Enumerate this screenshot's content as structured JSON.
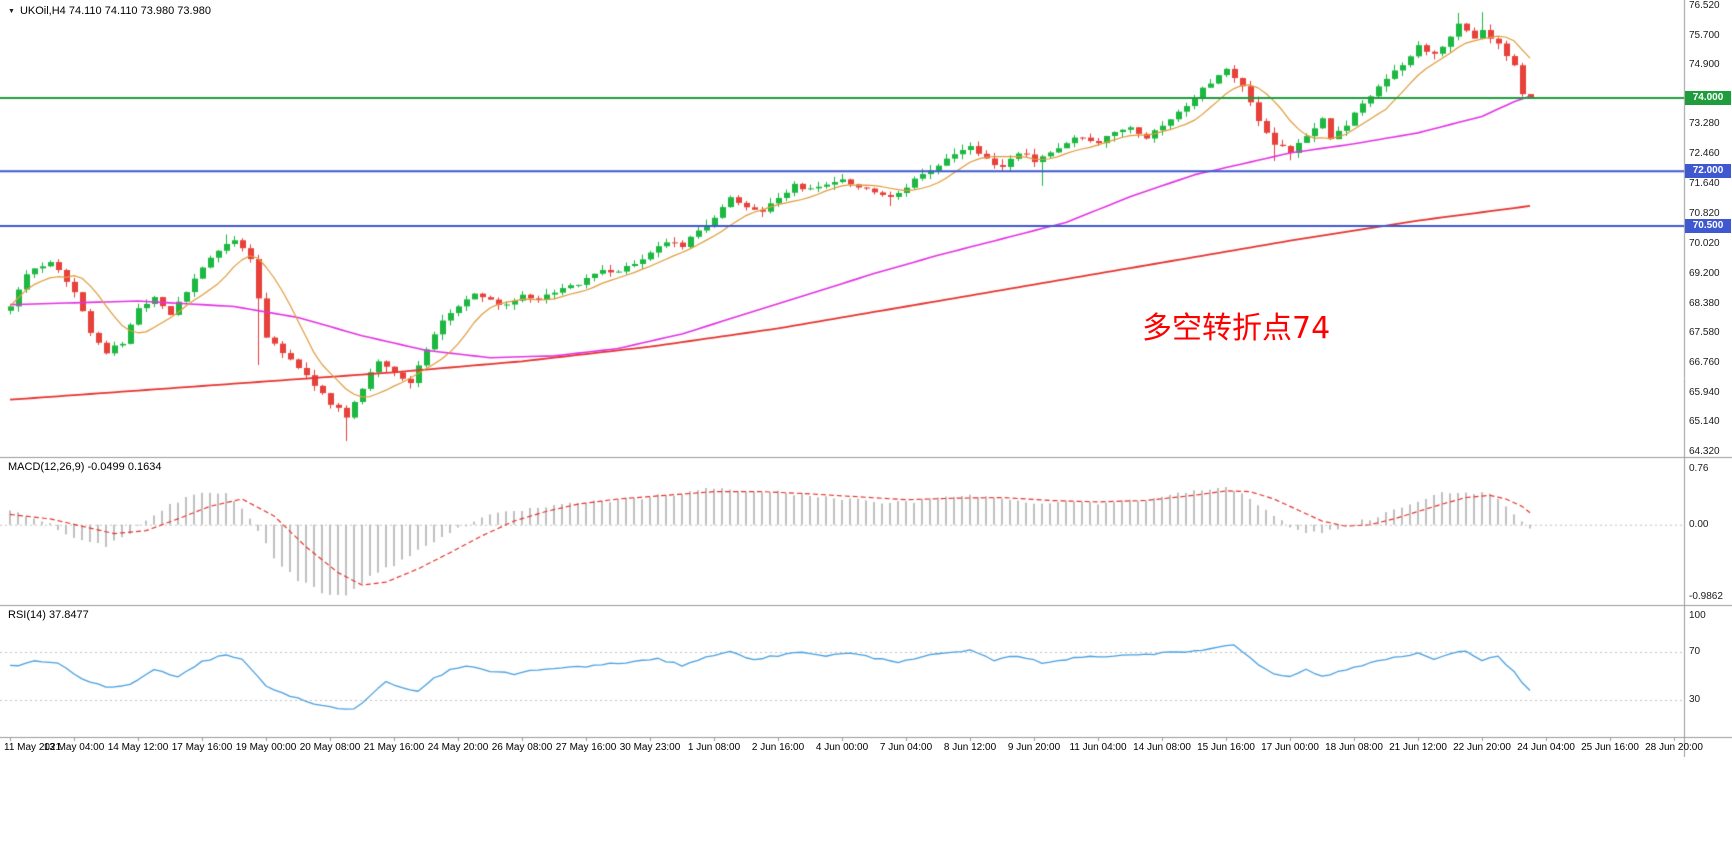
{
  "window": {
    "symbol_marker": "▼",
    "title": "UKOil,H4 74.110 74.110 73.980 73.980"
  },
  "colors": {
    "background": "#ffffff",
    "up_candle": "#1cb841",
    "down_candle": "#e8403a",
    "ma_fast": "#e09c3c",
    "ma_mid": "#e234e2",
    "ma_slow": "#e53531",
    "hline_green": "#1f9c3c",
    "hline_blue": "#3f58cf",
    "macd_hist": "#c0c0c0",
    "macd_signal": "#e53531",
    "rsi_line": "#4aa0e0",
    "axis_text": "#1a1a1a",
    "separator": "#9a9a9a",
    "annotation": "#ff0000"
  },
  "main_chart": {
    "y_ticks": [
      {
        "value": 76.52,
        "label": "76.520"
      },
      {
        "value": 75.7,
        "label": "75.700"
      },
      {
        "value": 74.9,
        "label": "74.900"
      },
      {
        "value": 73.28,
        "label": "73.280"
      },
      {
        "value": 72.46,
        "label": "72.460"
      },
      {
        "value": 71.64,
        "label": "71.640"
      },
      {
        "value": 70.82,
        "label": "70.820"
      },
      {
        "value": 70.02,
        "label": "70.020"
      },
      {
        "value": 69.2,
        "label": "69.200"
      },
      {
        "value": 68.38,
        "label": "68.380"
      },
      {
        "value": 67.58,
        "label": "67.580"
      },
      {
        "value": 66.76,
        "label": "66.760"
      },
      {
        "value": 65.94,
        "label": "65.940"
      },
      {
        "value": 65.14,
        "label": "65.140"
      },
      {
        "value": 64.32,
        "label": "64.320"
      }
    ],
    "hlines": [
      {
        "value": 74.0,
        "label": "74.000",
        "color": "#1f9c3c"
      },
      {
        "value": 72.0,
        "label": "72.000",
        "color": "#3f58cf"
      },
      {
        "value": 70.5,
        "label": "70.500",
        "color": "#3f58cf"
      }
    ],
    "annotation": {
      "text": "多空转折点74"
    }
  },
  "macd_panel": {
    "label": "MACD(12,26,9) -0.0499 0.1634",
    "y_ticks": [
      {
        "value": 0.76,
        "label": "0.76"
      },
      {
        "value": 0,
        "label": "0.00"
      },
      {
        "value": -0.9862,
        "label": "-0.9862"
      }
    ]
  },
  "rsi_panel": {
    "label": "RSI(14) 37.8477",
    "y_ticks": [
      {
        "value": 100,
        "label": "100"
      },
      {
        "value": 70,
        "label": "70"
      },
      {
        "value": 30,
        "label": "30"
      }
    ],
    "levels": [
      70,
      30
    ]
  },
  "x_axis": {
    "labels": [
      "11 May 2021",
      "13 May 04:00",
      "14 May 12:00",
      "17 May 16:00",
      "19 May 00:00",
      "20 May 08:00",
      "21 May 16:00",
      "24 May 20:00",
      "26 May 08:00",
      "27 May 16:00",
      "30 May 23:00",
      "1 Jun 08:00",
      "2 Jun 16:00",
      "4 Jun 00:00",
      "7 Jun 04:00",
      "8 Jun 12:00",
      "9 Jun 20:00",
      "11 Jun 04:00",
      "14 Jun 08:00",
      "15 Jun 16:00",
      "17 Jun 00:00",
      "18 Jun 08:00",
      "21 Jun 12:00",
      "22 Jun 20:00",
      "24 Jun 04:00",
      "25 Jun 16:00",
      "28 Jun 20:00"
    ]
  },
  "chart_data": {
    "type": "candlestick",
    "symbol": "UKOil",
    "timeframe": "H4",
    "current_bar": {
      "open": 74.11,
      "high": 74.11,
      "low": 73.98,
      "close": 73.98
    },
    "price_range": [
      64.32,
      76.52
    ],
    "bars": 191,
    "close_anchors": [
      [
        0,
        68.35
      ],
      [
        2,
        69.15
      ],
      [
        5,
        69.55
      ],
      [
        8,
        68.7
      ],
      [
        10,
        67.6
      ],
      [
        12,
        67.05
      ],
      [
        14,
        67.3
      ],
      [
        16,
        68.25
      ],
      [
        18,
        68.6
      ],
      [
        20,
        68.05
      ],
      [
        22,
        68.75
      ],
      [
        24,
        69.35
      ],
      [
        26,
        69.85
      ],
      [
        28,
        70.1
      ],
      [
        30,
        69.6
      ],
      [
        32,
        67.5
      ],
      [
        34,
        67.05
      ],
      [
        36,
        66.65
      ],
      [
        38,
        66.15
      ],
      [
        40,
        65.65
      ],
      [
        42,
        65.3
      ],
      [
        44,
        66.05
      ],
      [
        46,
        66.85
      ],
      [
        48,
        66.5
      ],
      [
        50,
        66.25
      ],
      [
        52,
        67.15
      ],
      [
        54,
        67.95
      ],
      [
        56,
        68.35
      ],
      [
        58,
        68.65
      ],
      [
        60,
        68.45
      ],
      [
        62,
        68.3
      ],
      [
        64,
        68.6
      ],
      [
        66,
        68.5
      ],
      [
        68,
        68.7
      ],
      [
        70,
        68.85
      ],
      [
        72,
        69.05
      ],
      [
        74,
        69.3
      ],
      [
        76,
        69.2
      ],
      [
        78,
        69.5
      ],
      [
        80,
        69.75
      ],
      [
        82,
        70.1
      ],
      [
        84,
        69.9
      ],
      [
        86,
        70.4
      ],
      [
        88,
        70.75
      ],
      [
        90,
        71.25
      ],
      [
        92,
        71.0
      ],
      [
        94,
        70.85
      ],
      [
        96,
        71.3
      ],
      [
        98,
        71.6
      ],
      [
        100,
        71.5
      ],
      [
        102,
        71.65
      ],
      [
        104,
        71.8
      ],
      [
        106,
        71.55
      ],
      [
        108,
        71.4
      ],
      [
        110,
        71.3
      ],
      [
        112,
        71.6
      ],
      [
        114,
        71.9
      ],
      [
        116,
        72.2
      ],
      [
        118,
        72.5
      ],
      [
        120,
        72.65
      ],
      [
        122,
        72.35
      ],
      [
        124,
        72.1
      ],
      [
        126,
        72.5
      ],
      [
        128,
        72.3
      ],
      [
        130,
        72.55
      ],
      [
        132,
        72.8
      ],
      [
        134,
        72.95
      ],
      [
        136,
        72.8
      ],
      [
        138,
        73.1
      ],
      [
        140,
        73.2
      ],
      [
        142,
        72.95
      ],
      [
        144,
        73.3
      ],
      [
        146,
        73.6
      ],
      [
        148,
        74.0
      ],
      [
        150,
        74.45
      ],
      [
        152,
        74.75
      ],
      [
        154,
        74.3
      ],
      [
        156,
        73.4
      ],
      [
        158,
        72.75
      ],
      [
        160,
        72.55
      ],
      [
        162,
        73.0
      ],
      [
        164,
        73.4
      ],
      [
        165,
        72.9
      ],
      [
        167,
        73.3
      ],
      [
        169,
        73.8
      ],
      [
        171,
        74.3
      ],
      [
        173,
        74.7
      ],
      [
        175,
        75.1
      ],
      [
        176,
        75.4
      ],
      [
        178,
        75.2
      ],
      [
        180,
        75.7
      ],
      [
        181,
        76.05
      ],
      [
        183,
        75.6
      ],
      [
        184,
        75.9
      ],
      [
        186,
        75.45
      ],
      [
        187,
        75.15
      ],
      [
        188,
        74.9
      ],
      [
        189,
        74.11
      ],
      [
        190,
        73.98
      ]
    ],
    "wick_overrides": [
      {
        "i": 27,
        "high": 70.27
      },
      {
        "i": 31,
        "low": 66.7
      },
      {
        "i": 42,
        "low": 64.62
      },
      {
        "i": 110,
        "low": 71.05
      },
      {
        "i": 129,
        "low": 71.6
      },
      {
        "i": 158,
        "low": 72.28
      },
      {
        "i": 160,
        "low": 72.3
      },
      {
        "i": 181,
        "high": 76.33
      },
      {
        "i": 184,
        "high": 76.35
      }
    ],
    "ma_mid_anchors": [
      [
        0,
        68.35
      ],
      [
        16,
        68.45
      ],
      [
        28,
        68.3
      ],
      [
        36,
        68.0
      ],
      [
        44,
        67.5
      ],
      [
        52,
        67.1
      ],
      [
        60,
        66.9
      ],
      [
        68,
        66.95
      ],
      [
        76,
        67.15
      ],
      [
        84,
        67.55
      ],
      [
        92,
        68.1
      ],
      [
        100,
        68.65
      ],
      [
        108,
        69.2
      ],
      [
        116,
        69.7
      ],
      [
        124,
        70.15
      ],
      [
        132,
        70.6
      ],
      [
        140,
        71.3
      ],
      [
        148,
        71.9
      ],
      [
        152,
        72.1
      ],
      [
        160,
        72.5
      ],
      [
        168,
        72.75
      ],
      [
        176,
        73.05
      ],
      [
        184,
        73.5
      ],
      [
        188,
        73.9
      ],
      [
        190,
        74.05
      ]
    ],
    "ma_slow_anchors": [
      [
        0,
        65.75
      ],
      [
        16,
        66.0
      ],
      [
        32,
        66.25
      ],
      [
        48,
        66.5
      ],
      [
        64,
        66.8
      ],
      [
        80,
        67.2
      ],
      [
        96,
        67.7
      ],
      [
        112,
        68.3
      ],
      [
        128,
        68.9
      ],
      [
        144,
        69.5
      ],
      [
        160,
        70.1
      ],
      [
        176,
        70.65
      ],
      [
        190,
        71.05
      ]
    ],
    "macd": {
      "params": "12,26,9",
      "last_macd": -0.0499,
      "last_signal": 0.1634,
      "range": [
        -0.9862,
        0.76
      ],
      "hist_anchors": [
        [
          0,
          0.18
        ],
        [
          3,
          0.1
        ],
        [
          6,
          -0.05
        ],
        [
          9,
          -0.22
        ],
        [
          12,
          -0.28
        ],
        [
          15,
          -0.1
        ],
        [
          18,
          0.15
        ],
        [
          21,
          0.32
        ],
        [
          24,
          0.45
        ],
        [
          27,
          0.42
        ],
        [
          30,
          0.1
        ],
        [
          33,
          -0.45
        ],
        [
          36,
          -0.75
        ],
        [
          39,
          -0.92
        ],
        [
          42,
          -0.95
        ],
        [
          45,
          -0.7
        ],
        [
          48,
          -0.55
        ],
        [
          51,
          -0.35
        ],
        [
          54,
          -0.15
        ],
        [
          57,
          0.0
        ],
        [
          60,
          0.12
        ],
        [
          64,
          0.2
        ],
        [
          68,
          0.25
        ],
        [
          72,
          0.3
        ],
        [
          76,
          0.33
        ],
        [
          80,
          0.38
        ],
        [
          84,
          0.42
        ],
        [
          88,
          0.5
        ],
        [
          92,
          0.46
        ],
        [
          96,
          0.44
        ],
        [
          100,
          0.4
        ],
        [
          104,
          0.36
        ],
        [
          108,
          0.3
        ],
        [
          112,
          0.3
        ],
        [
          116,
          0.36
        ],
        [
          120,
          0.42
        ],
        [
          124,
          0.34
        ],
        [
          128,
          0.3
        ],
        [
          132,
          0.32
        ],
        [
          136,
          0.3
        ],
        [
          140,
          0.32
        ],
        [
          144,
          0.38
        ],
        [
          148,
          0.48
        ],
        [
          152,
          0.52
        ],
        [
          155,
          0.35
        ],
        [
          158,
          0.1
        ],
        [
          161,
          -0.08
        ],
        [
          164,
          -0.12
        ],
        [
          167,
          0.0
        ],
        [
          170,
          0.08
        ],
        [
          173,
          0.2
        ],
        [
          176,
          0.32
        ],
        [
          179,
          0.42
        ],
        [
          182,
          0.46
        ],
        [
          185,
          0.4
        ],
        [
          187,
          0.25
        ],
        [
          188,
          0.15
        ],
        [
          189,
          0.05
        ],
        [
          190,
          -0.0499
        ]
      ],
      "signal_anchors": [
        [
          0,
          0.14
        ],
        [
          5,
          0.08
        ],
        [
          9,
          -0.02
        ],
        [
          13,
          -0.12
        ],
        [
          17,
          -0.08
        ],
        [
          21,
          0.08
        ],
        [
          25,
          0.25
        ],
        [
          29,
          0.35
        ],
        [
          33,
          0.12
        ],
        [
          37,
          -0.3
        ],
        [
          41,
          -0.65
        ],
        [
          44,
          -0.82
        ],
        [
          47,
          -0.78
        ],
        [
          51,
          -0.6
        ],
        [
          55,
          -0.38
        ],
        [
          59,
          -0.15
        ],
        [
          63,
          0.05
        ],
        [
          67,
          0.18
        ],
        [
          71,
          0.28
        ],
        [
          76,
          0.35
        ],
        [
          82,
          0.4
        ],
        [
          88,
          0.45
        ],
        [
          94,
          0.45
        ],
        [
          100,
          0.42
        ],
        [
          106,
          0.38
        ],
        [
          112,
          0.34
        ],
        [
          118,
          0.36
        ],
        [
          124,
          0.37
        ],
        [
          130,
          0.33
        ],
        [
          136,
          0.31
        ],
        [
          142,
          0.33
        ],
        [
          148,
          0.4
        ],
        [
          152,
          0.46
        ],
        [
          155,
          0.45
        ],
        [
          158,
          0.35
        ],
        [
          161,
          0.2
        ],
        [
          164,
          0.05
        ],
        [
          167,
          -0.02
        ],
        [
          170,
          0.0
        ],
        [
          173,
          0.08
        ],
        [
          176,
          0.18
        ],
        [
          179,
          0.28
        ],
        [
          182,
          0.37
        ],
        [
          185,
          0.4
        ],
        [
          187,
          0.35
        ],
        [
          189,
          0.25
        ],
        [
          190,
          0.1634
        ]
      ]
    },
    "rsi": {
      "period": 14,
      "last": 37.8477,
      "range": [
        0,
        100
      ],
      "anchors": [
        [
          0,
          58
        ],
        [
          3,
          62
        ],
        [
          6,
          60
        ],
        [
          9,
          48
        ],
        [
          12,
          40
        ],
        [
          15,
          43
        ],
        [
          18,
          55
        ],
        [
          21,
          50
        ],
        [
          24,
          62
        ],
        [
          27,
          68
        ],
        [
          29,
          64
        ],
        [
          32,
          42
        ],
        [
          35,
          33
        ],
        [
          38,
          27
        ],
        [
          41,
          23
        ],
        [
          43,
          22
        ],
        [
          45,
          34
        ],
        [
          47,
          45
        ],
        [
          49,
          40
        ],
        [
          51,
          37
        ],
        [
          53,
          48
        ],
        [
          55,
          55
        ],
        [
          57,
          58
        ],
        [
          60,
          54
        ],
        [
          63,
          52
        ],
        [
          66,
          55
        ],
        [
          69,
          57
        ],
        [
          72,
          58
        ],
        [
          75,
          60
        ],
        [
          78,
          62
        ],
        [
          81,
          64
        ],
        [
          84,
          59
        ],
        [
          87,
          66
        ],
        [
          90,
          70
        ],
        [
          93,
          64
        ],
        [
          96,
          67
        ],
        [
          99,
          70
        ],
        [
          102,
          67
        ],
        [
          105,
          69
        ],
        [
          108,
          65
        ],
        [
          111,
          62
        ],
        [
          114,
          66
        ],
        [
          117,
          69
        ],
        [
          120,
          71
        ],
        [
          123,
          63
        ],
        [
          126,
          67
        ],
        [
          129,
          61
        ],
        [
          132,
          64
        ],
        [
          135,
          66
        ],
        [
          138,
          67
        ],
        [
          141,
          68
        ],
        [
          144,
          69
        ],
        [
          147,
          70
        ],
        [
          150,
          73
        ],
        [
          153,
          76
        ],
        [
          156,
          60
        ],
        [
          158,
          52
        ],
        [
          160,
          50
        ],
        [
          162,
          55
        ],
        [
          164,
          50
        ],
        [
          166,
          53
        ],
        [
          168,
          57
        ],
        [
          170,
          61
        ],
        [
          172,
          64
        ],
        [
          174,
          67
        ],
        [
          176,
          69
        ],
        [
          178,
          64
        ],
        [
          180,
          68
        ],
        [
          182,
          71
        ],
        [
          184,
          63
        ],
        [
          186,
          66
        ],
        [
          187,
          60
        ],
        [
          188,
          54
        ],
        [
          189,
          45
        ],
        [
          190,
          37.8477
        ]
      ]
    }
  }
}
